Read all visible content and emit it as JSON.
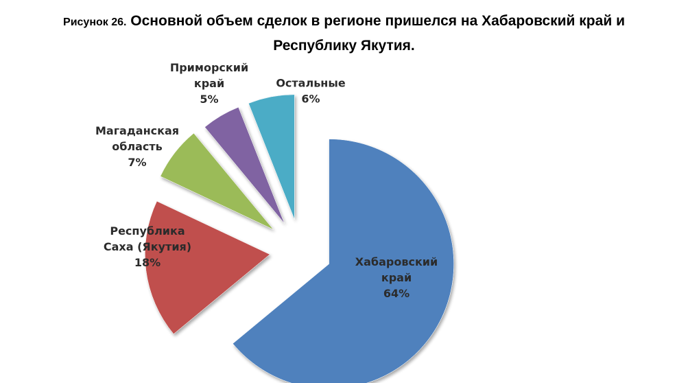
{
  "title": {
    "figure_label": "Рисунок 26.",
    "text_line1": "Основной объем сделок в регионе пришелся на Хабаровский край и",
    "text_line2": "Республику Якутия."
  },
  "chart_data": {
    "type": "pie",
    "exploded": true,
    "title": "Основной объем сделок в регионе пришелся на Хабаровский край и Республику Якутия.",
    "slices": [
      {
        "name": "Хабаровский край",
        "label_lines": [
          "Хабаровский",
          "край",
          "64%"
        ],
        "value": 64,
        "color": "#4F81BD"
      },
      {
        "name": "Республика Саха (Якутия)",
        "label_lines": [
          "Республика",
          "Саха (Якутия)",
          "18%"
        ],
        "value": 18,
        "color": "#C0504D"
      },
      {
        "name": "Магаданская область",
        "label_lines": [
          "Магаданская",
          "область",
          "7%"
        ],
        "value": 7,
        "color": "#9BBB59"
      },
      {
        "name": "Приморский край",
        "label_lines": [
          "Приморский",
          "край",
          "5%"
        ],
        "value": 5,
        "color": "#8064A2"
      },
      {
        "name": "Остальные",
        "label_lines": [
          "Остальные",
          "6%"
        ],
        "value": 6,
        "color": "#4BACC6"
      }
    ]
  }
}
